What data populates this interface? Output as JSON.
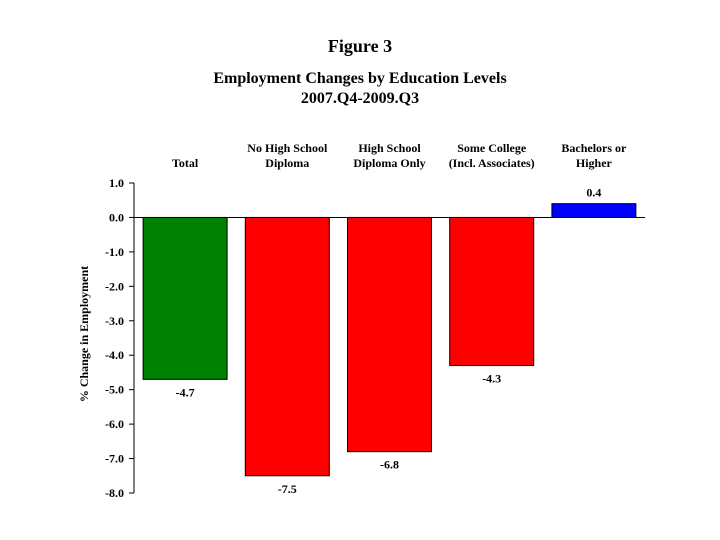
{
  "figure_label": "Figure 3",
  "chart_data": {
    "type": "bar",
    "title": "Employment Changes by Education Levels",
    "subtitle": "2007.Q4-2009.Q3",
    "xlabel": "",
    "ylabel": "% Change in Employment",
    "categories": [
      [
        "Total"
      ],
      [
        "No High School",
        "Diploma"
      ],
      [
        "High School",
        "Diploma Only"
      ],
      [
        "Some College",
        "(Incl. Associates)"
      ],
      [
        "Bachelors or",
        "Higher"
      ]
    ],
    "values": [
      -4.7,
      -7.5,
      -6.8,
      -4.3,
      0.4
    ],
    "value_labels": [
      "-4.7",
      "-7.5",
      "-6.8",
      "-4.3",
      "0.4"
    ],
    "bar_colors": [
      "#008000",
      "#ff0000",
      "#ff0000",
      "#ff0000",
      "#0000ff"
    ],
    "ylim": [
      -8.0,
      1.0
    ],
    "yticks": [
      1.0,
      0.0,
      -1.0,
      -2.0,
      -3.0,
      -4.0,
      -5.0,
      -6.0,
      -7.0,
      -8.0
    ],
    "ytick_labels": [
      "1.0",
      "0.0",
      "-1.0",
      "-2.0",
      "-3.0",
      "-4.0",
      "-5.0",
      "-6.0",
      "-7.0",
      "-8.0"
    ],
    "grid": false,
    "legend": "none"
  }
}
